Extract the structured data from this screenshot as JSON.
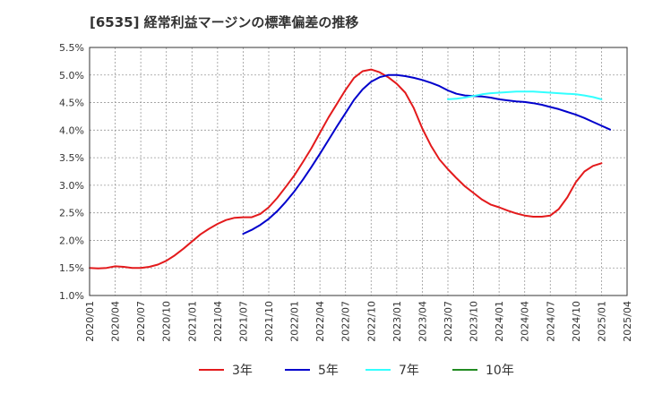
{
  "chart_data": {
    "type": "line",
    "title": "[6535]  経常利益マージンの標準偏差の推移",
    "xlabel": "",
    "ylabel": "",
    "ylim": [
      1.0,
      5.5
    ],
    "y_ticks": [
      "1.0%",
      "1.5%",
      "2.0%",
      "2.5%",
      "3.0%",
      "3.5%",
      "4.0%",
      "4.5%",
      "5.0%",
      "5.5%"
    ],
    "x_ticks": [
      "2020/01",
      "2020/04",
      "2020/07",
      "2020/10",
      "2021/01",
      "2021/04",
      "2021/07",
      "2021/10",
      "2022/01",
      "2022/04",
      "2022/07",
      "2022/10",
      "2023/01",
      "2023/04",
      "2023/07",
      "2023/10",
      "2024/01",
      "2024/04",
      "2024/07",
      "2024/10",
      "2025/01",
      "2025/04"
    ],
    "grid": true,
    "legend_position": "bottom",
    "series": [
      {
        "name": "3年",
        "color": "#e31a1c",
        "points": [
          [
            "2020/01",
            1.5
          ],
          [
            "2020/02",
            1.49
          ],
          [
            "2020/03",
            1.5
          ],
          [
            "2020/04",
            1.53
          ],
          [
            "2020/05",
            1.52
          ],
          [
            "2020/06",
            1.5
          ],
          [
            "2020/07",
            1.5
          ],
          [
            "2020/08",
            1.52
          ],
          [
            "2020/09",
            1.56
          ],
          [
            "2020/10",
            1.63
          ],
          [
            "2020/11",
            1.73
          ],
          [
            "2020/12",
            1.85
          ],
          [
            "2021/01",
            1.98
          ],
          [
            "2021/02",
            2.11
          ],
          [
            "2021/03",
            2.21
          ],
          [
            "2021/04",
            2.3
          ],
          [
            "2021/05",
            2.37
          ],
          [
            "2021/06",
            2.41
          ],
          [
            "2021/07",
            2.42
          ],
          [
            "2021/08",
            2.42
          ],
          [
            "2021/09",
            2.48
          ],
          [
            "2021/10",
            2.6
          ],
          [
            "2021/11",
            2.77
          ],
          [
            "2021/12",
            2.97
          ],
          [
            "2022/01",
            3.18
          ],
          [
            "2022/02",
            3.42
          ],
          [
            "2022/03",
            3.67
          ],
          [
            "2022/04",
            3.95
          ],
          [
            "2022/05",
            4.23
          ],
          [
            "2022/06",
            4.48
          ],
          [
            "2022/07",
            4.73
          ],
          [
            "2022/08",
            4.95
          ],
          [
            "2022/09",
            5.07
          ],
          [
            "2022/10",
            5.1
          ],
          [
            "2022/11",
            5.05
          ],
          [
            "2022/12",
            4.96
          ],
          [
            "2023/01",
            4.84
          ],
          [
            "2023/02",
            4.68
          ],
          [
            "2023/03",
            4.4
          ],
          [
            "2023/04",
            4.03
          ],
          [
            "2023/05",
            3.72
          ],
          [
            "2023/06",
            3.47
          ],
          [
            "2023/07",
            3.29
          ],
          [
            "2023/08",
            3.13
          ],
          [
            "2023/09",
            2.98
          ],
          [
            "2023/10",
            2.86
          ],
          [
            "2023/11",
            2.74
          ],
          [
            "2023/12",
            2.65
          ],
          [
            "2024/01",
            2.6
          ],
          [
            "2024/02",
            2.54
          ],
          [
            "2024/03",
            2.49
          ],
          [
            "2024/04",
            2.45
          ],
          [
            "2024/05",
            2.43
          ],
          [
            "2024/06",
            2.43
          ],
          [
            "2024/07",
            2.45
          ],
          [
            "2024/08",
            2.57
          ],
          [
            "2024/09",
            2.78
          ],
          [
            "2024/10",
            3.06
          ],
          [
            "2024/11",
            3.25
          ],
          [
            "2024/12",
            3.35
          ],
          [
            "2025/01",
            3.4
          ]
        ]
      },
      {
        "name": "5年",
        "color": "#0000cc",
        "points": [
          [
            "2021/07",
            2.12
          ],
          [
            "2021/08",
            2.19
          ],
          [
            "2021/09",
            2.28
          ],
          [
            "2021/10",
            2.39
          ],
          [
            "2021/11",
            2.53
          ],
          [
            "2021/12",
            2.7
          ],
          [
            "2022/01",
            2.89
          ],
          [
            "2022/02",
            3.1
          ],
          [
            "2022/03",
            3.33
          ],
          [
            "2022/04",
            3.57
          ],
          [
            "2022/05",
            3.82
          ],
          [
            "2022/06",
            4.07
          ],
          [
            "2022/07",
            4.31
          ],
          [
            "2022/08",
            4.55
          ],
          [
            "2022/09",
            4.74
          ],
          [
            "2022/10",
            4.88
          ],
          [
            "2022/11",
            4.96
          ],
          [
            "2022/12",
            5.0
          ],
          [
            "2023/01",
            5.0
          ],
          [
            "2023/02",
            4.98
          ],
          [
            "2023/03",
            4.95
          ],
          [
            "2023/04",
            4.91
          ],
          [
            "2023/05",
            4.86
          ],
          [
            "2023/06",
            4.8
          ],
          [
            "2023/07",
            4.72
          ],
          [
            "2023/08",
            4.66
          ],
          [
            "2023/09",
            4.63
          ],
          [
            "2023/10",
            4.62
          ],
          [
            "2023/11",
            4.61
          ],
          [
            "2023/12",
            4.59
          ],
          [
            "2024/01",
            4.56
          ],
          [
            "2024/02",
            4.54
          ],
          [
            "2024/03",
            4.52
          ],
          [
            "2024/04",
            4.51
          ],
          [
            "2024/05",
            4.49
          ],
          [
            "2024/06",
            4.46
          ],
          [
            "2024/07",
            4.42
          ],
          [
            "2024/08",
            4.38
          ],
          [
            "2024/09",
            4.33
          ],
          [
            "2024/10",
            4.28
          ],
          [
            "2024/11",
            4.22
          ],
          [
            "2024/12",
            4.15
          ],
          [
            "2025/01",
            4.08
          ],
          [
            "2025/02",
            4.01
          ]
        ]
      },
      {
        "name": "7年",
        "color": "#33ffff",
        "points": [
          [
            "2023/07",
            4.56
          ],
          [
            "2023/08",
            4.57
          ],
          [
            "2023/09",
            4.59
          ],
          [
            "2023/10",
            4.62
          ],
          [
            "2023/11",
            4.65
          ],
          [
            "2023/12",
            4.67
          ],
          [
            "2024/01",
            4.68
          ],
          [
            "2024/02",
            4.69
          ],
          [
            "2024/03",
            4.7
          ],
          [
            "2024/04",
            4.7
          ],
          [
            "2024/05",
            4.7
          ],
          [
            "2024/06",
            4.69
          ],
          [
            "2024/07",
            4.68
          ],
          [
            "2024/08",
            4.67
          ],
          [
            "2024/09",
            4.66
          ],
          [
            "2024/10",
            4.65
          ],
          [
            "2024/11",
            4.63
          ],
          [
            "2024/12",
            4.6
          ],
          [
            "2025/01",
            4.56
          ]
        ]
      },
      {
        "name": "10年",
        "color": "#228b22",
        "points": []
      }
    ]
  }
}
